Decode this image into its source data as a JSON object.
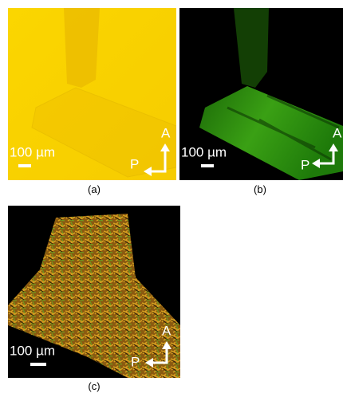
{
  "panels": [
    {
      "label": "(a)",
      "scale": "100 µm",
      "axis_a": "A",
      "axis_p": "P"
    },
    {
      "label": "(b)",
      "scale": "100 µm",
      "axis_a": "A",
      "axis_p": "P"
    },
    {
      "label": "(c)",
      "scale": "100 µm",
      "axis_a": "A",
      "axis_p": "P"
    }
  ]
}
